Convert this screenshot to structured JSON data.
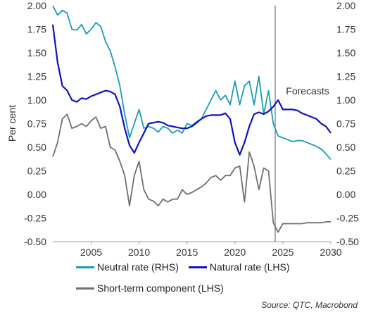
{
  "chart_data": {
    "type": "line",
    "ylabel_left": "Per cent",
    "ylim_left": [
      -0.5,
      2.0
    ],
    "ylim_right": [
      -0.5,
      2.0
    ],
    "yticks": [
      "-0.50",
      "-0.25",
      "0.00",
      "0.25",
      "0.50",
      "0.75",
      "1.00",
      "1.25",
      "1.50",
      "1.75",
      "2.00"
    ],
    "xlim": [
      2001,
      2030
    ],
    "xticks": [
      "2005",
      "2010",
      "2015",
      "2020",
      "2025",
      "2030"
    ],
    "annotation": {
      "text": "Forecasts",
      "x": 2024.2
    },
    "grid": false,
    "legend_position": "bottom",
    "series": [
      {
        "name": "Neutral rate (RHS)",
        "axis": "right",
        "color": "#1a9bb8",
        "x": [
          2001,
          2001.5,
          2002,
          2002.5,
          2003,
          2003.5,
          2004,
          2004.5,
          2005,
          2005.5,
          2006,
          2006.5,
          2007,
          2007.5,
          2008,
          2008.5,
          2009,
          2009.5,
          2010,
          2010.5,
          2011,
          2011.5,
          2012,
          2012.5,
          2013,
          2013.5,
          2014,
          2014.5,
          2015,
          2015.5,
          2016,
          2016.5,
          2017,
          2017.5,
          2018,
          2018.5,
          2019,
          2019.5,
          2020,
          2020.5,
          2021,
          2021.5,
          2022,
          2022.5,
          2023,
          2023.5,
          2024,
          2024.5,
          2025,
          2025.5,
          2026,
          2026.5,
          2027,
          2027.5,
          2028,
          2028.5,
          2029,
          2029.5,
          2030
        ],
        "values": [
          2.0,
          1.9,
          1.95,
          1.92,
          1.75,
          1.74,
          1.8,
          1.7,
          1.75,
          1.82,
          1.78,
          1.62,
          1.52,
          1.35,
          1.15,
          0.85,
          0.6,
          0.75,
          0.9,
          0.7,
          0.72,
          0.7,
          0.66,
          0.72,
          0.7,
          0.65,
          0.68,
          0.65,
          0.75,
          0.73,
          0.77,
          0.8,
          0.9,
          1.0,
          1.1,
          1.0,
          1.05,
          0.95,
          1.2,
          0.95,
          1.15,
          1.2,
          0.95,
          1.25,
          0.85,
          1.1,
          0.75,
          0.62,
          0.6,
          0.58,
          0.56,
          0.57,
          0.57,
          0.55,
          0.53,
          0.51,
          0.48,
          0.43,
          0.37
        ]
      },
      {
        "name": "Natural rate (LHS)",
        "axis": "left",
        "color": "#1010c8",
        "x": [
          2001,
          2001.5,
          2002,
          2002.5,
          2003,
          2003.5,
          2004,
          2004.5,
          2005,
          2005.5,
          2006,
          2006.5,
          2007,
          2007.5,
          2008,
          2008.5,
          2009,
          2009.5,
          2010,
          2010.5,
          2011,
          2011.5,
          2012,
          2012.5,
          2013,
          2013.5,
          2014,
          2014.5,
          2015,
          2015.5,
          2016,
          2016.5,
          2017,
          2017.5,
          2018,
          2018.5,
          2019,
          2019.5,
          2020,
          2020.5,
          2021,
          2021.5,
          2022,
          2022.5,
          2023,
          2023.5,
          2024,
          2024.5,
          2025,
          2025.5,
          2026,
          2026.5,
          2027,
          2027.5,
          2028,
          2028.5,
          2029,
          2029.5,
          2030
        ],
        "values": [
          1.8,
          1.4,
          1.15,
          1.1,
          1.0,
          0.98,
          1.02,
          1.01,
          1.04,
          1.06,
          1.08,
          1.1,
          1.09,
          1.06,
          0.93,
          0.7,
          0.52,
          0.44,
          0.55,
          0.65,
          0.75,
          0.76,
          0.77,
          0.76,
          0.73,
          0.72,
          0.71,
          0.7,
          0.7,
          0.72,
          0.76,
          0.8,
          0.83,
          0.84,
          0.84,
          0.84,
          0.86,
          0.8,
          0.55,
          0.42,
          0.55,
          0.72,
          0.85,
          0.87,
          0.85,
          0.88,
          0.93,
          1.0,
          0.9,
          0.9,
          0.9,
          0.89,
          0.86,
          0.84,
          0.82,
          0.8,
          0.75,
          0.72,
          0.65
        ]
      },
      {
        "name": "Short-term component (LHS)",
        "axis": "left",
        "color": "#707070",
        "x": [
          2001,
          2001.5,
          2002,
          2002.5,
          2003,
          2003.5,
          2004,
          2004.5,
          2005,
          2005.5,
          2006,
          2006.5,
          2007,
          2007.5,
          2008,
          2008.5,
          2009,
          2009.5,
          2010,
          2010.5,
          2011,
          2011.5,
          2012,
          2012.5,
          2013,
          2013.5,
          2014,
          2014.5,
          2015,
          2015.5,
          2016,
          2016.5,
          2017,
          2017.5,
          2018,
          2018.5,
          2019,
          2019.5,
          2020,
          2020.5,
          2021,
          2021.5,
          2022,
          2022.5,
          2023,
          2023.5,
          2024,
          2024.5,
          2025,
          2025.5,
          2026,
          2026.5,
          2027,
          2027.5,
          2028,
          2028.5,
          2029,
          2029.5,
          2030
        ],
        "values": [
          0.4,
          0.55,
          0.8,
          0.85,
          0.7,
          0.72,
          0.75,
          0.72,
          0.78,
          0.82,
          0.7,
          0.72,
          0.5,
          0.47,
          0.35,
          0.2,
          -0.12,
          0.2,
          0.35,
          0.05,
          -0.05,
          -0.07,
          -0.12,
          -0.05,
          -0.08,
          -0.05,
          -0.05,
          0.05,
          0.0,
          0.02,
          0.05,
          0.08,
          0.12,
          0.18,
          0.2,
          0.15,
          0.2,
          0.2,
          0.28,
          0.3,
          -0.08,
          0.45,
          0.3,
          0.05,
          0.28,
          0.25,
          -0.3,
          -0.4,
          -0.31,
          -0.31,
          -0.31,
          -0.31,
          -0.31,
          -0.3,
          -0.3,
          -0.3,
          -0.3,
          -0.29,
          -0.29
        ]
      }
    ]
  },
  "legend": {
    "items": [
      {
        "label": "Neutral rate (RHS)",
        "color": "#1a9bb8"
      },
      {
        "label": "Natural rate (LHS)",
        "color": "#1010c8"
      },
      {
        "label": "Short-term component (LHS)",
        "color": "#707070"
      }
    ]
  },
  "source": "Source: QTC, Macrobond"
}
